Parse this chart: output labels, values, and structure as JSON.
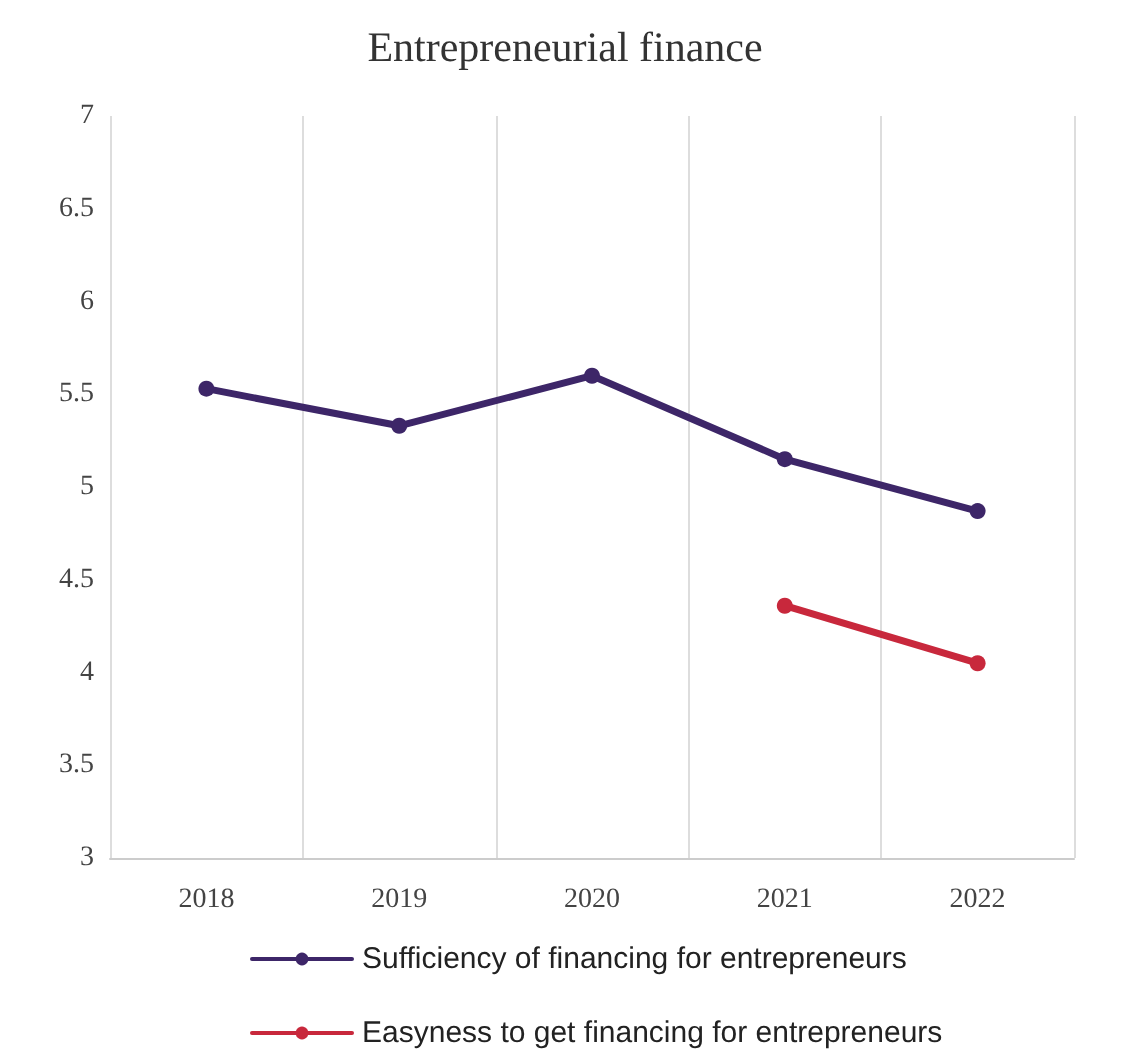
{
  "chart_data": {
    "type": "line",
    "title": "Entrepreneurial finance",
    "categories": [
      "2018",
      "2019",
      "2020",
      "2021",
      "2022"
    ],
    "series": [
      {
        "name": "Sufficiency of financing for entrepreneurs",
        "color": "#3d2668",
        "values": [
          5.53,
          5.33,
          5.6,
          5.15,
          4.87
        ]
      },
      {
        "name": "Easyness to get financing for entrepreneurs",
        "color": "#c8283c",
        "values": [
          null,
          null,
          null,
          4.36,
          4.05
        ]
      }
    ],
    "ylim": [
      3,
      7
    ],
    "yticks": [
      3,
      3.5,
      4,
      4.5,
      5,
      5.5,
      6,
      6.5,
      7
    ],
    "grid": "x",
    "legend": "bottom",
    "marker": "circle",
    "line_style": "solid"
  }
}
